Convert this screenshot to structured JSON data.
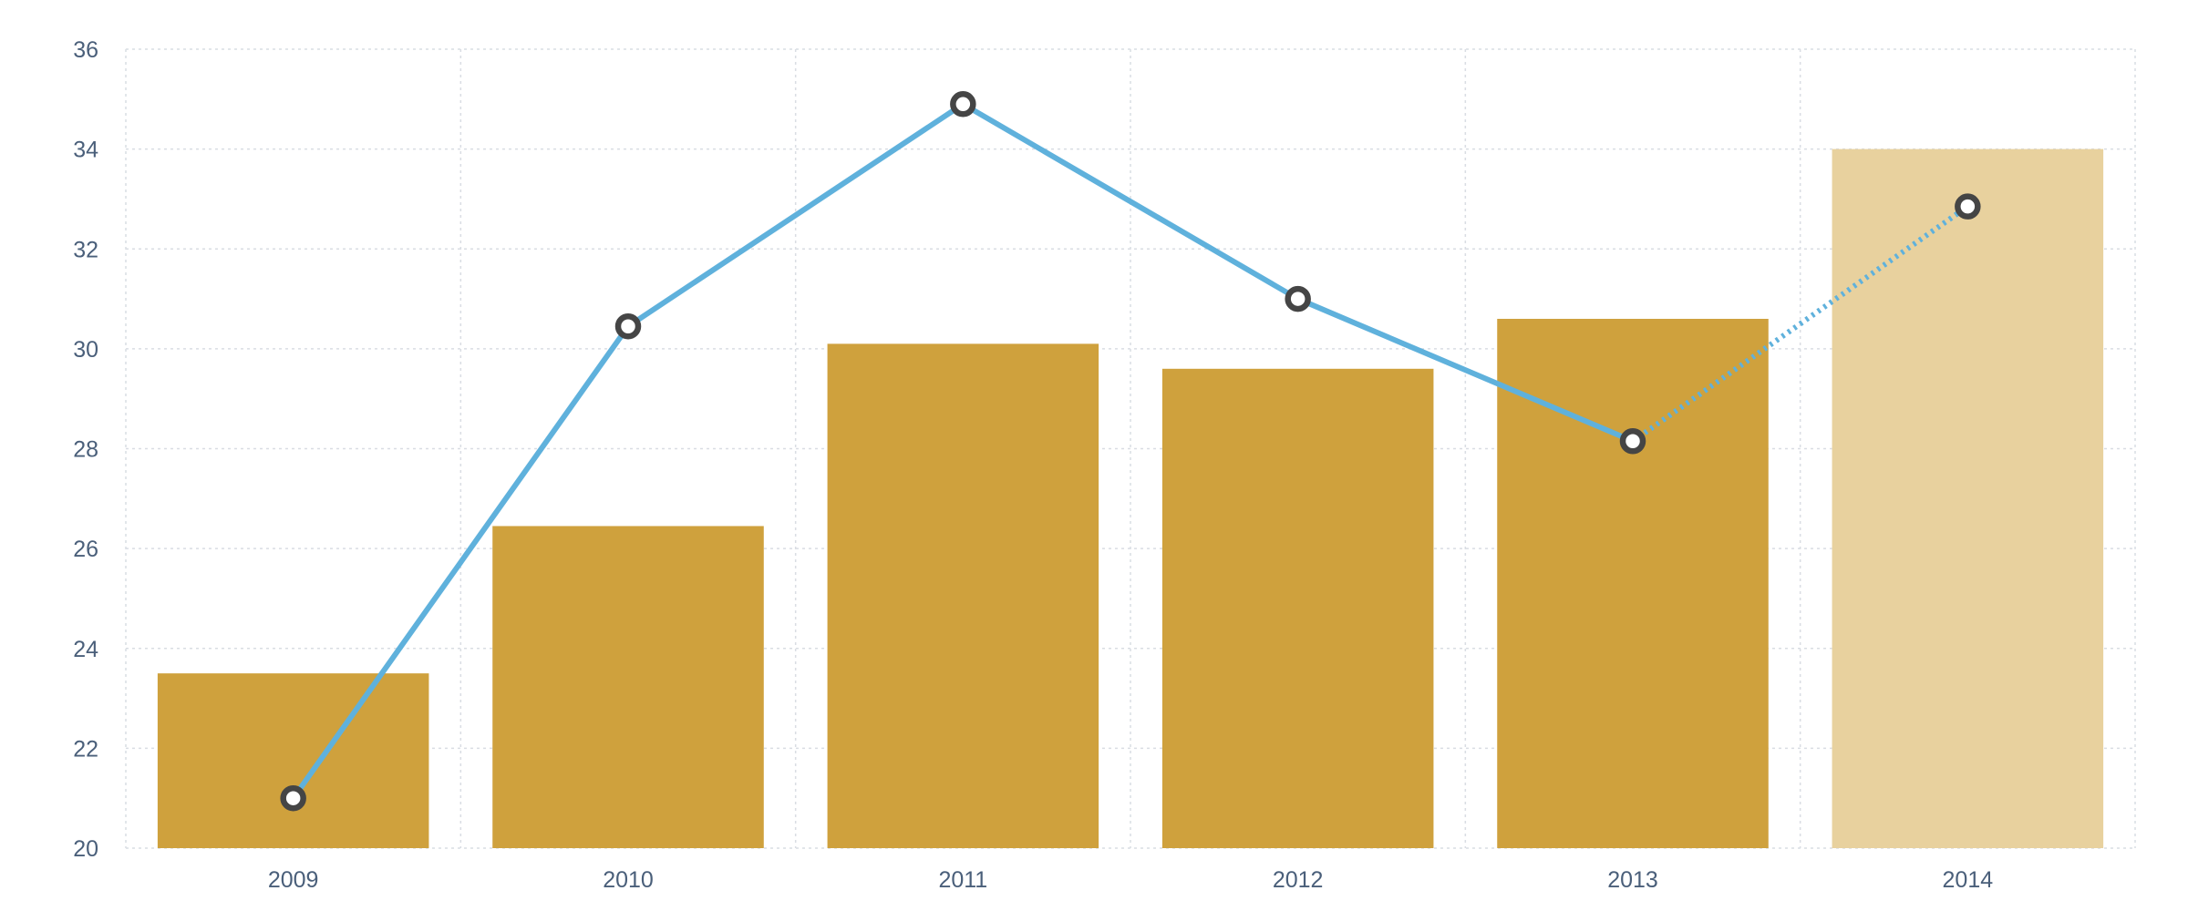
{
  "chart_data": {
    "type": "bar",
    "categories": [
      "2009",
      "2010",
      "2011",
      "2012",
      "2013",
      "2014"
    ],
    "series": [
      {
        "kind": "bar",
        "values": [
          23.5,
          26.45,
          30.1,
          29.6,
          30.6,
          34.0
        ],
        "color": "#cfa13d",
        "projected_color": "#e8d19e",
        "projected_from_index": 5
      },
      {
        "kind": "line",
        "values": [
          21.0,
          30.45,
          34.9,
          31.0,
          28.15,
          32.85
        ],
        "color": "#5fb1dc",
        "marker_color": "#454545",
        "dotted_from_index": 4
      }
    ],
    "title": "",
    "xlabel": "",
    "ylabel": "",
    "ylim": [
      20,
      36
    ],
    "yticks": [
      "20",
      "22",
      "24",
      "26",
      "28",
      "30",
      "32",
      "34",
      "36"
    ],
    "grid": true,
    "legend": "none"
  }
}
